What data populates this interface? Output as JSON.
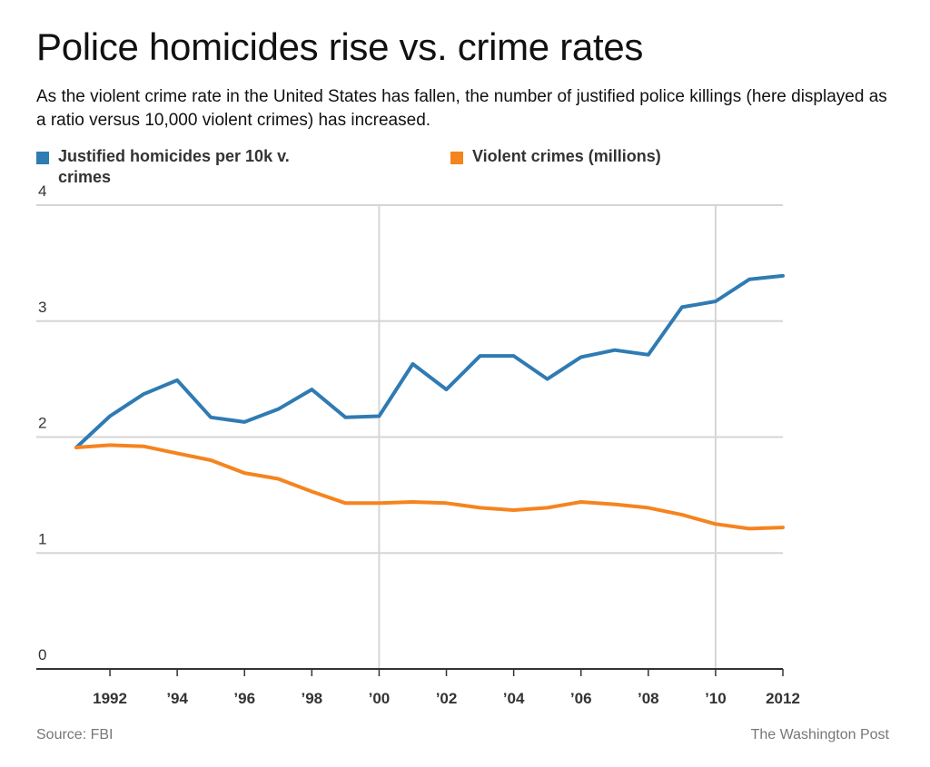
{
  "title": "Police homicides rise vs. crime rates",
  "subtitle": "As the violent crime rate in the United States has fallen, the number of justified police killings (here displayed as a ratio versus 10,000 violent crimes) has increased.",
  "legend": [
    {
      "label": "Justified homicides per 10k v. crimes",
      "color": "#2f7bb3"
    },
    {
      "label": "Violent crimes (millions)",
      "color": "#f5841f"
    }
  ],
  "footer": {
    "source": "Source: FBI",
    "credit": "The Washington Post"
  },
  "chart_data": {
    "type": "line",
    "x": [
      1991,
      1992,
      1993,
      1994,
      1995,
      1996,
      1997,
      1998,
      1999,
      2000,
      2001,
      2002,
      2003,
      2004,
      2005,
      2006,
      2007,
      2008,
      2009,
      2010,
      2011,
      2012
    ],
    "series": [
      {
        "name": "Justified homicides per 10k v. crimes",
        "color": "#2f7bb3",
        "values": [
          1.91,
          2.18,
          2.37,
          2.49,
          2.17,
          2.13,
          2.24,
          2.41,
          2.17,
          2.18,
          2.63,
          2.41,
          2.7,
          2.7,
          2.5,
          2.69,
          2.75,
          2.71,
          3.12,
          3.17,
          3.36,
          3.39
        ]
      },
      {
        "name": "Violent crimes (millions)",
        "color": "#f5841f",
        "values": [
          1.91,
          1.93,
          1.92,
          1.86,
          1.8,
          1.69,
          1.64,
          1.53,
          1.43,
          1.43,
          1.44,
          1.43,
          1.39,
          1.37,
          1.39,
          1.44,
          1.42,
          1.39,
          1.33,
          1.25,
          1.21,
          1.22
        ]
      }
    ],
    "xticks": [
      {
        "x": 1992,
        "label": "1992"
      },
      {
        "x": 1994,
        "label": "’94"
      },
      {
        "x": 1996,
        "label": "’96"
      },
      {
        "x": 1998,
        "label": "’98"
      },
      {
        "x": 2000,
        "label": "’00"
      },
      {
        "x": 2002,
        "label": "’02"
      },
      {
        "x": 2004,
        "label": "’04"
      },
      {
        "x": 2006,
        "label": "’06"
      },
      {
        "x": 2008,
        "label": "’08"
      },
      {
        "x": 2010,
        "label": "’10"
      },
      {
        "x": 2012,
        "label": "2012"
      }
    ],
    "yticks": [
      {
        "y": 0,
        "label": "0"
      },
      {
        "y": 1,
        "label": "1"
      },
      {
        "y": 2,
        "label": "2"
      },
      {
        "y": 3,
        "label": "3"
      },
      {
        "y": 4,
        "label": "4"
      }
    ],
    "vlines": [
      2000,
      2010
    ],
    "ylim": [
      0,
      4
    ],
    "xlim": [
      1991,
      2012
    ],
    "grid": true,
    "legend_position": "top"
  }
}
